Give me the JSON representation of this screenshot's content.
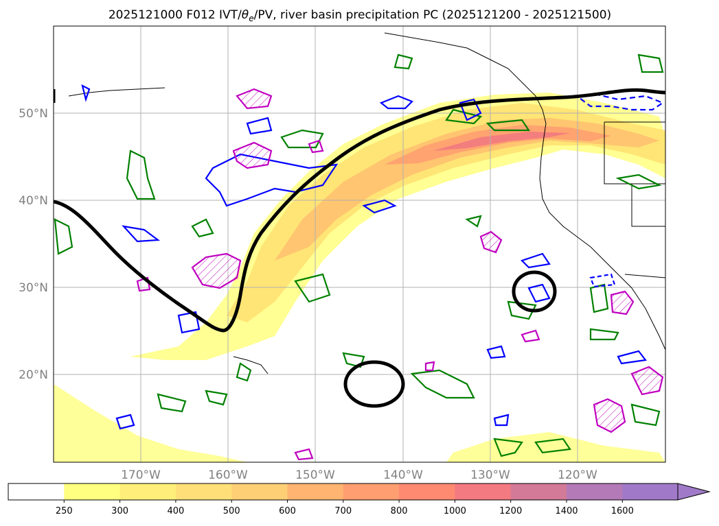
{
  "title": "2025121000 F012 IVT/θe/PV, river basin precipitation PC (2025121200 - 2025121500)",
  "title_parts": {
    "prefix": "2025121000 F012 IVT/",
    "theta": "θ",
    "theta_sub": "e",
    "suffix": "/PV, river basin precipitation PC (2025121200 - 2025121500)"
  },
  "map": {
    "projection": "cylindrical",
    "lon_range": [
      -180,
      -110
    ],
    "lat_range": [
      10,
      60
    ],
    "gridlines": true,
    "lat_ticks": [
      {
        "value": 20,
        "label": "20°N"
      },
      {
        "value": 30,
        "label": "30°N"
      },
      {
        "value": 40,
        "label": "40°N"
      },
      {
        "value": 50,
        "label": "50°N"
      }
    ],
    "lon_ticks": [
      {
        "value": -170,
        "label": "170°W"
      },
      {
        "value": -160,
        "label": "160°W"
      },
      {
        "value": -150,
        "label": "150°W"
      },
      {
        "value": -140,
        "label": "140°W"
      },
      {
        "value": -130,
        "label": "130°W"
      },
      {
        "value": -120,
        "label": "120°W"
      }
    ]
  },
  "colorbar": {
    "levels": [
      "250",
      "300",
      "400",
      "500",
      "600",
      "700",
      "800",
      "1000",
      "1200",
      "1400",
      "1600"
    ],
    "colors": [
      "#ffffff",
      "#ffff80",
      "#ffef7a",
      "#ffdf78",
      "#ffcf76",
      "#ffb472",
      "#ff9e70",
      "#ff8a72",
      "#f27a80",
      "#d27a98",
      "#b47ab8",
      "#a07ac8"
    ],
    "extend": "max"
  },
  "colors": {
    "theta_e_contours": "#008000",
    "pv_positive": "#0000ff",
    "pv_hatched": "#c000c0",
    "ivt_contour": "#000000",
    "coastline": "#000000",
    "grid": "#b0b0b0",
    "axis_tick_text": "#808080"
  }
}
